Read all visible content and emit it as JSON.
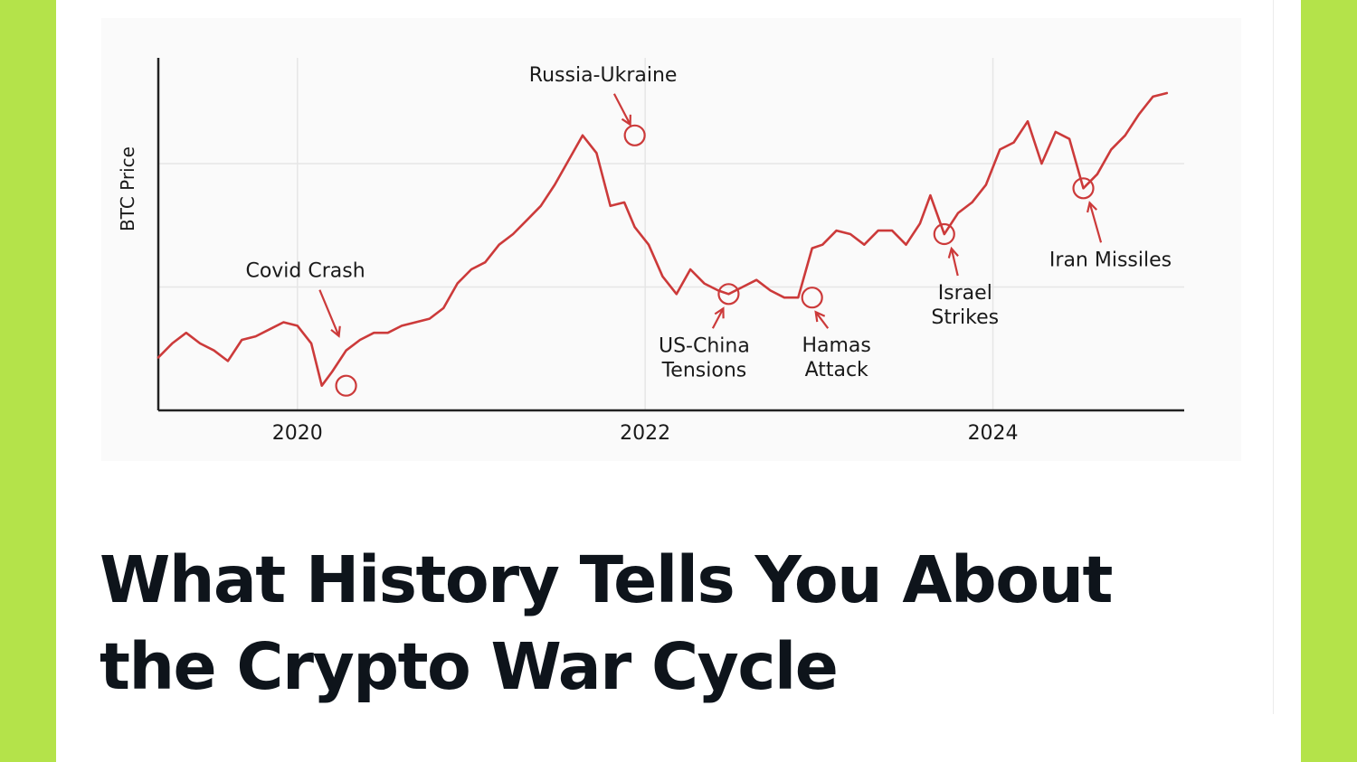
{
  "colors": {
    "accent": "#b4e34a",
    "line": "#cc3a3a",
    "ink": "#0e141b"
  },
  "headline": "What History Tells You About the Crypto War Cycle",
  "chart_data": {
    "type": "line",
    "title": "",
    "xlabel": "",
    "ylabel": "BTC Price",
    "xlim": [
      2019.2,
      2025.1
    ],
    "ylim": [
      0,
      100
    ],
    "x_ticks": [
      2020,
      2022,
      2024
    ],
    "grid": true,
    "legend": "none",
    "series": [
      {
        "x": [
          2019.2,
          2019.28,
          2019.36,
          2019.44,
          2019.52,
          2019.6,
          2019.68,
          2019.76,
          2019.84,
          2019.92,
          2020.0,
          2020.08,
          2020.14,
          2020.2,
          2020.28,
          2020.36,
          2020.44,
          2020.52,
          2020.6,
          2020.68,
          2020.76,
          2020.84,
          2020.92,
          2021.0,
          2021.08,
          2021.16,
          2021.24,
          2021.32,
          2021.4,
          2021.48,
          2021.56,
          2021.64,
          2021.72,
          2021.8,
          2021.88,
          2021.94,
          2022.02,
          2022.1,
          2022.18,
          2022.26,
          2022.34,
          2022.42,
          2022.48,
          2022.56,
          2022.64,
          2022.72,
          2022.8,
          2022.88,
          2022.96,
          2023.02,
          2023.1,
          2023.18,
          2023.26,
          2023.34,
          2023.42,
          2023.5,
          2023.58,
          2023.64,
          2023.72,
          2023.8,
          2023.88,
          2023.96,
          2024.04,
          2024.12,
          2024.2,
          2024.28,
          2024.36,
          2024.44,
          2024.52,
          2024.6,
          2024.68,
          2024.76,
          2024.84,
          2024.92,
          2025.0
        ],
        "y": [
          15,
          19,
          22,
          19,
          17,
          14,
          20,
          21,
          23,
          25,
          24,
          19,
          7,
          11,
          17,
          20,
          22,
          22,
          24,
          25,
          26,
          29,
          36,
          40,
          42,
          47,
          50,
          54,
          58,
          64,
          71,
          78,
          73,
          58,
          59,
          52,
          47,
          38,
          33,
          40,
          36,
          34,
          33,
          35,
          37,
          34,
          32,
          32,
          46,
          47,
          51,
          50,
          47,
          51,
          51,
          47,
          53,
          61,
          50,
          56,
          59,
          64,
          74,
          76,
          82,
          70,
          79,
          77,
          63,
          67,
          74,
          78,
          84,
          89,
          90
        ]
      }
    ],
    "annotations": [
      {
        "text": "Covid Crash",
        "x": 2020.28,
        "y": 7
      },
      {
        "text": "Russia-Ukraine",
        "x": 2021.94,
        "y": 78
      },
      {
        "text": "US-China Tensions",
        "x": 2022.48,
        "y": 33
      },
      {
        "text": "Hamas Attack",
        "x": 2022.96,
        "y": 32
      },
      {
        "text": "Israel Strikes",
        "x": 2023.72,
        "y": 50
      },
      {
        "text": "Iran Missiles",
        "x": 2024.52,
        "y": 63
      }
    ]
  }
}
